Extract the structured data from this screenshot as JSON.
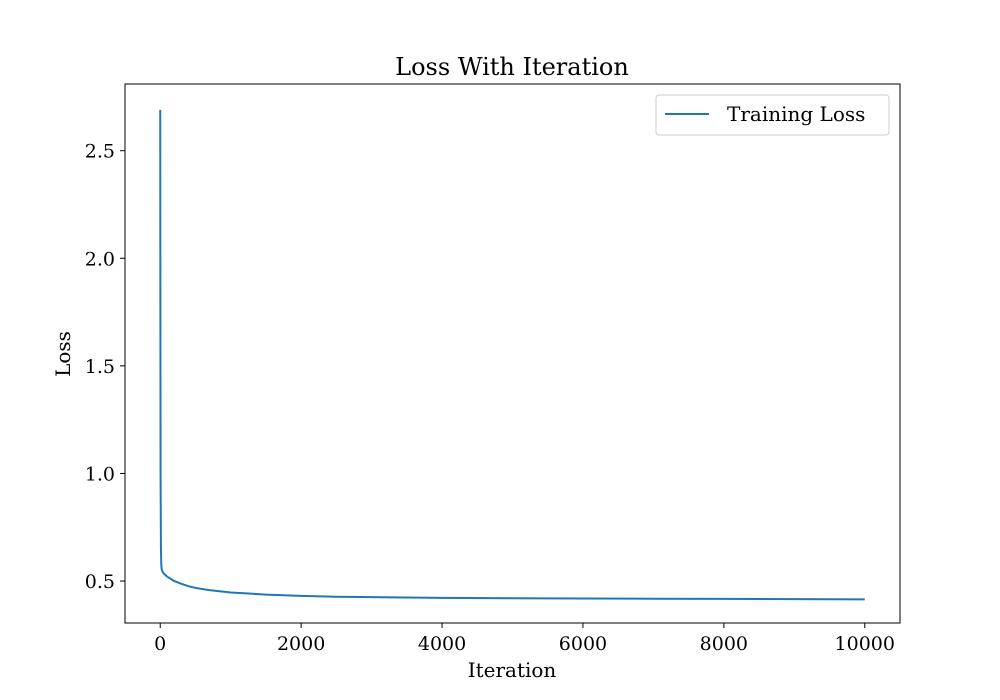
{
  "chart_data": {
    "type": "line",
    "title": "Loss With Iteration",
    "xlabel": "Iteration",
    "ylabel": "Loss",
    "xlim": [
      -500,
      10500
    ],
    "ylim": [
      0.305,
      2.81
    ],
    "xticks": [
      0,
      2000,
      4000,
      6000,
      8000,
      10000
    ],
    "yticks": [
      0.5,
      1.0,
      1.5,
      2.0,
      2.5
    ],
    "xtick_labels": [
      "0",
      "2000",
      "4000",
      "6000",
      "8000",
      "10000"
    ],
    "ytick_labels": [
      "0.5",
      "1.0",
      "1.5",
      "2.0",
      "2.5"
    ],
    "grid": false,
    "legend_position": "top-right",
    "series": [
      {
        "name": "Training Loss",
        "color": "#1f77b4",
        "x": [
          0,
          2,
          5,
          10,
          15,
          20,
          30,
          50,
          100,
          200,
          300,
          400,
          500,
          700,
          1000,
          1500,
          2000,
          2500,
          3000,
          4000,
          5000,
          6000,
          7000,
          8000,
          9000,
          10000
        ],
        "y": [
          2.69,
          1.9,
          1.0,
          0.65,
          0.58,
          0.555,
          0.545,
          0.535,
          0.52,
          0.5,
          0.487,
          0.476,
          0.468,
          0.458,
          0.447,
          0.437,
          0.431,
          0.427,
          0.425,
          0.422,
          0.42,
          0.419,
          0.418,
          0.417,
          0.416,
          0.415
        ]
      }
    ]
  }
}
